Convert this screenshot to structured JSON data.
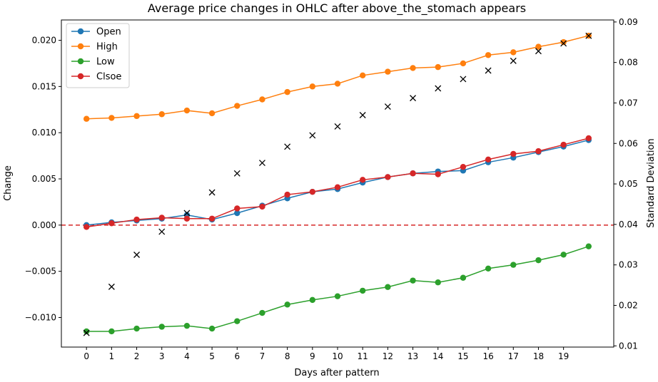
{
  "chart_data": {
    "type": "line",
    "title": "Average price changes in OHLC after above_the_stomach appears",
    "xlabel": "Days after pattern",
    "ylabel": "Change",
    "y2label": "Standard Deviation",
    "x": [
      0,
      1,
      2,
      3,
      4,
      5,
      6,
      7,
      8,
      9,
      10,
      11,
      12,
      13,
      14,
      15,
      16,
      17,
      18,
      19,
      20
    ],
    "xticks": [
      "0",
      "1",
      "2",
      "3",
      "4",
      "5",
      "6",
      "7",
      "8",
      "9",
      "10",
      "11",
      "12",
      "13",
      "14",
      "15",
      "16",
      "17",
      "18",
      "19"
    ],
    "ylim": [
      -0.0132,
      0.0222
    ],
    "yticks": [
      "0.020",
      "0.015",
      "0.010",
      "0.005",
      "0.000",
      "−0.005",
      "−0.010"
    ],
    "y2lim": [
      0.0097,
      0.0905
    ],
    "y2ticks": [
      "0.09",
      "0.08",
      "0.07",
      "0.06",
      "0.05",
      "0.04",
      "0.03",
      "0.02",
      "0.01"
    ],
    "reference_line": {
      "y": 0.0,
      "color": "#d62728",
      "style": "dashed"
    },
    "legend_position": "top-left",
    "series": [
      {
        "name": "Open",
        "color": "#1f77b4",
        "values": [
          0.0,
          0.0003,
          0.0005,
          0.0007,
          0.0011,
          0.0006,
          0.0013,
          0.0021,
          0.0029,
          0.0036,
          0.0039,
          0.0046,
          0.0052,
          0.0056,
          0.0058,
          0.0059,
          0.0068,
          0.0073,
          0.0079,
          0.0085,
          0.0092
        ]
      },
      {
        "name": "High",
        "color": "#ff7f0e",
        "values": [
          0.0115,
          0.0116,
          0.0118,
          0.012,
          0.0124,
          0.0121,
          0.0129,
          0.0136,
          0.0144,
          0.015,
          0.0153,
          0.0162,
          0.0166,
          0.017,
          0.0171,
          0.0175,
          0.0184,
          0.0187,
          0.0193,
          0.0198,
          0.0205
        ]
      },
      {
        "name": "Low",
        "color": "#2ca02c",
        "values": [
          -0.0115,
          -0.0115,
          -0.0112,
          -0.011,
          -0.0109,
          -0.0112,
          -0.0104,
          -0.0095,
          -0.0086,
          -0.0081,
          -0.0077,
          -0.0071,
          -0.0067,
          -0.006,
          -0.0062,
          -0.0057,
          -0.0047,
          -0.0043,
          -0.0038,
          -0.0032,
          -0.0023
        ]
      },
      {
        "name": "Clsoe",
        "color": "#d62728",
        "values": [
          -0.0002,
          0.0002,
          0.0006,
          0.0008,
          0.0007,
          0.0007,
          0.0018,
          0.002,
          0.0033,
          0.0036,
          0.0041,
          0.0049,
          0.0052,
          0.0056,
          0.0055,
          0.0063,
          0.0071,
          0.0077,
          0.008,
          0.0087,
          0.0094
        ]
      }
    ],
    "std_series": {
      "marker": "x",
      "color": "#000000",
      "axis": "right",
      "values": [
        0.0132,
        0.0246,
        0.0325,
        0.0382,
        0.0428,
        0.0479,
        0.0526,
        0.0552,
        0.0592,
        0.062,
        0.0642,
        0.067,
        0.0691,
        0.0712,
        0.0736,
        0.0759,
        0.078,
        0.0804,
        0.0828,
        0.0847,
        0.0866
      ]
    }
  }
}
